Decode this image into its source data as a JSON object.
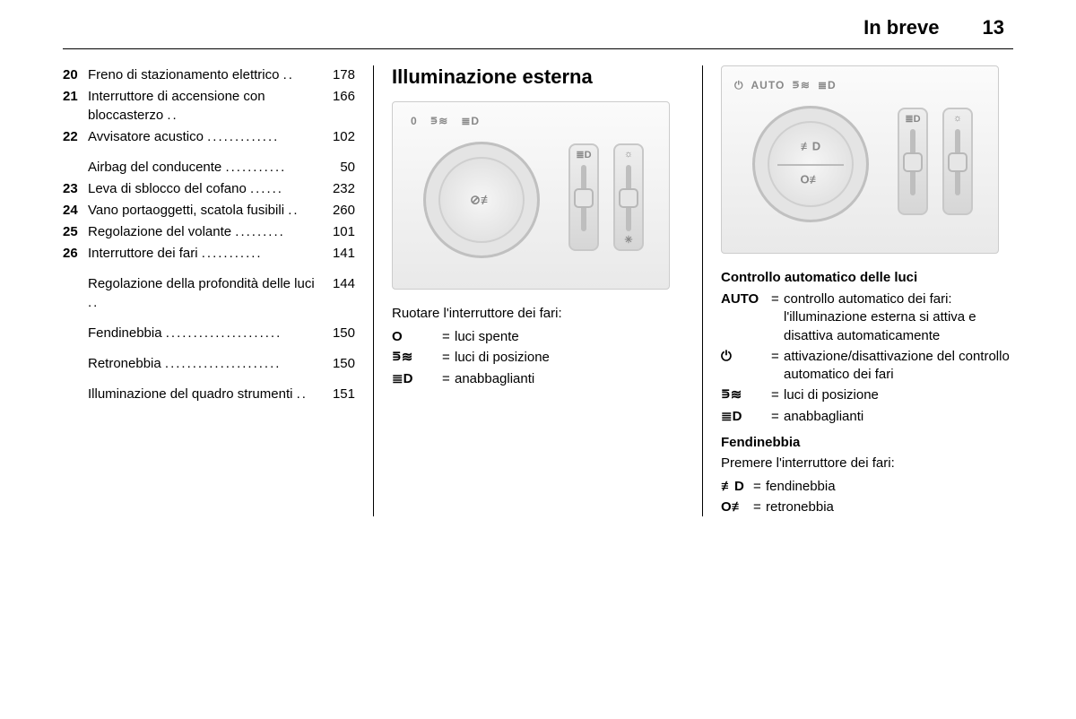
{
  "header": {
    "title": "In breve",
    "page": "13"
  },
  "toc": [
    {
      "num": "20",
      "text": "Freno di stazionamento elettrico",
      "page": "178"
    },
    {
      "num": "21",
      "text": "Interruttore di accensione con bloccasterzo",
      "page": "166"
    },
    {
      "num": "22",
      "text": "Avvisatore acustico",
      "page": "102"
    },
    {
      "num": "",
      "text": "Airbag del conducente",
      "page": "50"
    },
    {
      "num": "23",
      "text": "Leva di sblocco del cofano",
      "page": "232"
    },
    {
      "num": "24",
      "text": "Vano portaoggetti, scatola fusibili",
      "page": "260"
    },
    {
      "num": "25",
      "text": "Regolazione del volante",
      "page": "101"
    },
    {
      "num": "26",
      "text": "Interruttore dei fari",
      "page": "141"
    },
    {
      "num": "",
      "text": "Regolazione della profondità delle luci",
      "page": "144"
    },
    {
      "num": "",
      "text": "Fendinebbia",
      "page": "150"
    },
    {
      "num": "",
      "text": "Retronebbia",
      "page": "150"
    },
    {
      "num": "",
      "text": "Illuminazione del quadro strumenti",
      "page": "151"
    }
  ],
  "col2": {
    "title": "Illuminazione esterna",
    "figure": {
      "dial_labels": [
        "0",
        "⋾≋",
        "≣D"
      ],
      "dial_center": "⊘≢",
      "slider1_top": "≣D",
      "slider1_bot": "",
      "slider2_top": "☼",
      "slider2_bot": "✳"
    },
    "caption": "Ruotare l'interruttore dei fari:",
    "defs": [
      {
        "key": "O",
        "val": "luci spente"
      },
      {
        "key": "⋾≋",
        "val": "luci di posizione"
      },
      {
        "key": "≣D",
        "val": "anabbaglianti"
      }
    ]
  },
  "col3": {
    "figure": {
      "dial_top_labels": [
        "⏻",
        "AUTO",
        "⋾≋",
        "≣D"
      ],
      "dial_center_top": "≢D",
      "dial_center_bot": "O≢",
      "slider1_top": "≣D",
      "slider2_top": "☼"
    },
    "heading1": "Controllo automatico delle luci",
    "defs1": [
      {
        "key": "AUTO",
        "val": "controllo automatico dei fari: l'illuminazione esterna si attiva e disattiva auto­maticamente"
      },
      {
        "key": "⏻",
        "val": "attivazione/disattivazione del controllo automatico dei fari"
      },
      {
        "key": "⋾≋",
        "val": "luci di posizione"
      },
      {
        "key": "≣D",
        "val": "anabbaglianti"
      }
    ],
    "heading2": "Fendinebbia",
    "caption2": "Premere l'interruttore dei fari:",
    "defs2": [
      {
        "key": "≢D",
        "val": "fendinebbia"
      },
      {
        "key": "O≢",
        "val": "retronebbia"
      }
    ]
  }
}
